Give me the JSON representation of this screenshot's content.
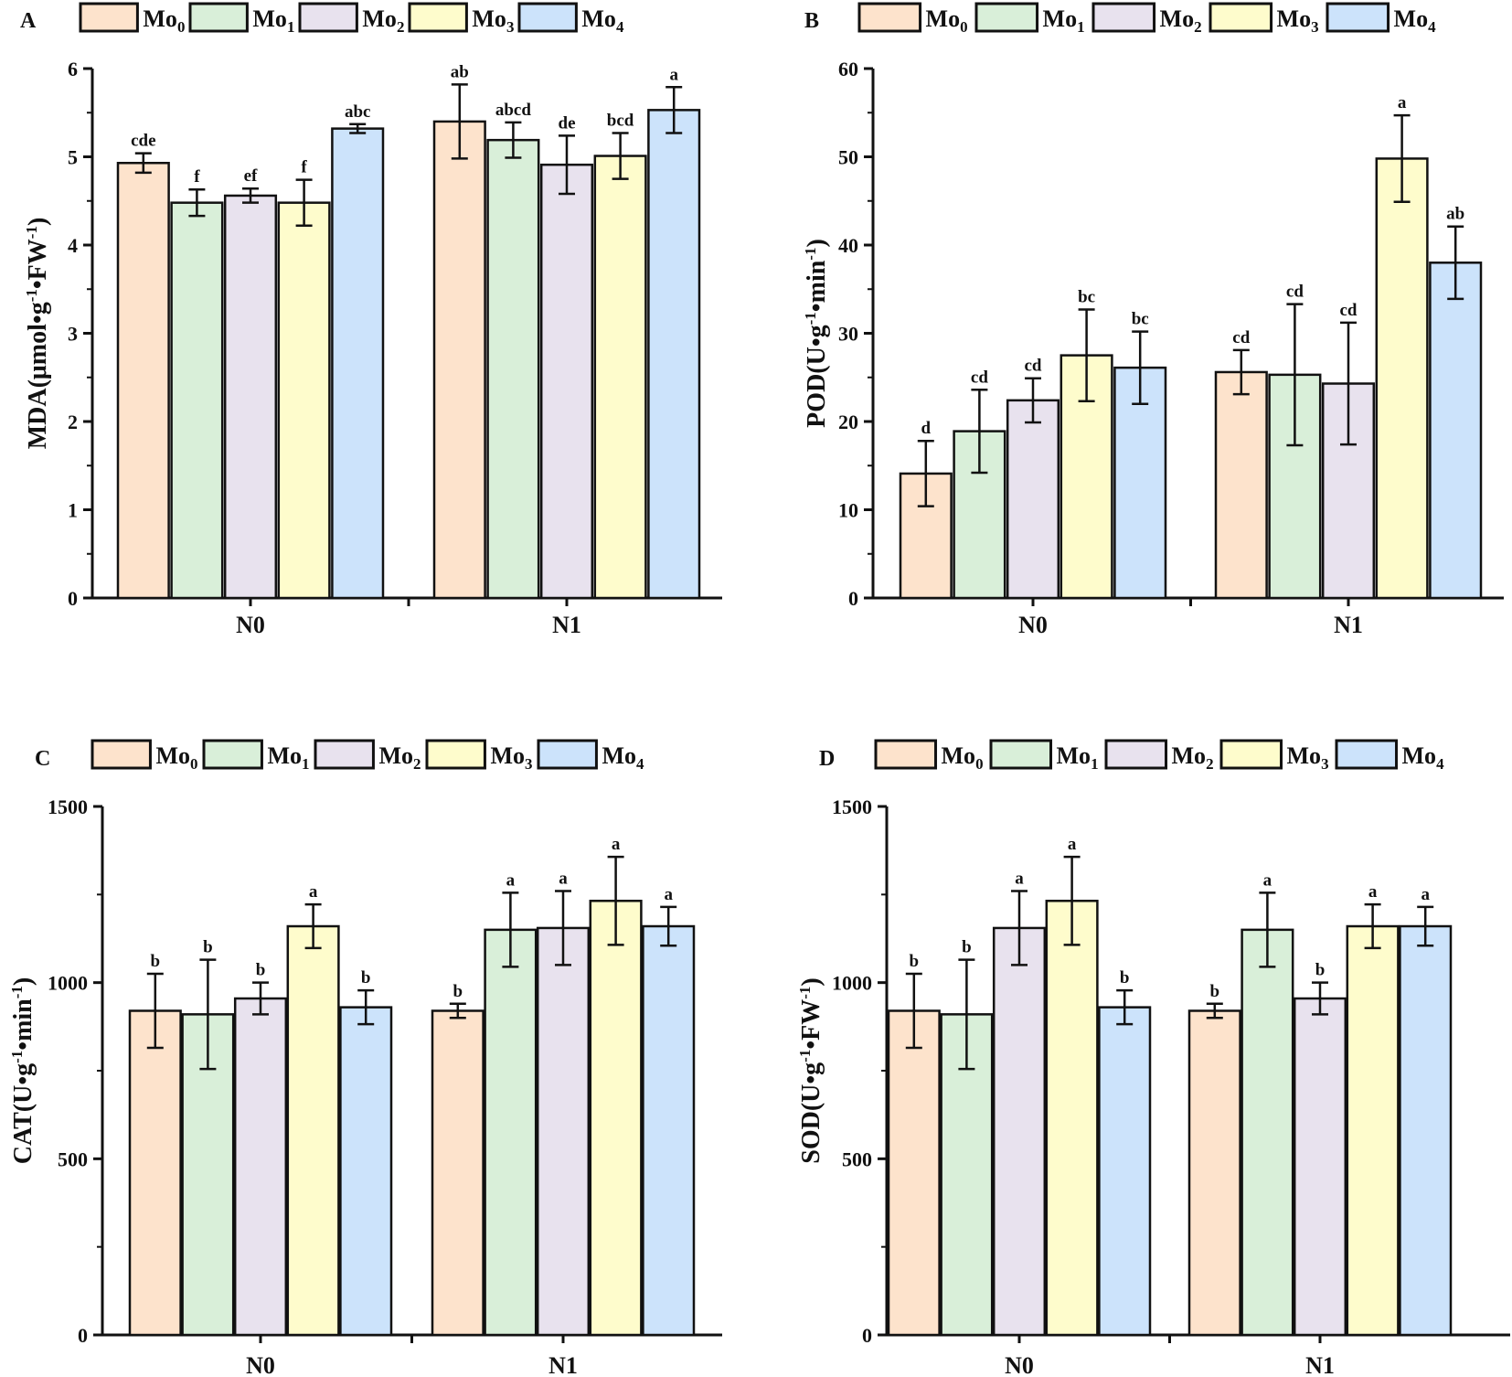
{
  "figure": {
    "legend": [
      {
        "base": "Mo",
        "sub": "0",
        "color": "#fde3cc"
      },
      {
        "base": "Mo",
        "sub": "1",
        "color": "#d9efd9"
      },
      {
        "base": "Mo",
        "sub": "2",
        "color": "#e8e2ee"
      },
      {
        "base": "Mo",
        "sub": "3",
        "color": "#fefccc"
      },
      {
        "base": "Mo",
        "sub": "4",
        "color": "#cce3fb"
      }
    ]
  },
  "chart_data": [
    {
      "panel": "A",
      "type": "bar",
      "categories": [
        "N0",
        "N1"
      ],
      "ylabel": {
        "pre": "MDA(μmol•g",
        "sup1": "-1",
        "mid": "•FW",
        "sup2": "-1",
        "post": ")"
      },
      "ylim": [
        0,
        6
      ],
      "yticks": [
        0,
        1,
        2,
        3,
        4,
        5,
        6
      ],
      "series": [
        {
          "name": "Mo0",
          "values": [
            4.93,
            5.4
          ],
          "errors": [
            0.11,
            0.42
          ],
          "sig": [
            "cde",
            "ab"
          ]
        },
        {
          "name": "Mo1",
          "values": [
            4.48,
            5.19
          ],
          "errors": [
            0.15,
            0.2
          ],
          "sig": [
            "f",
            "abcd"
          ]
        },
        {
          "name": "Mo2",
          "values": [
            4.56,
            4.91
          ],
          "errors": [
            0.08,
            0.33
          ],
          "sig": [
            "ef",
            "de"
          ]
        },
        {
          "name": "Mo3",
          "values": [
            4.48,
            5.01
          ],
          "errors": [
            0.26,
            0.26
          ],
          "sig": [
            "f",
            "bcd"
          ]
        },
        {
          "name": "Mo4",
          "values": [
            5.32,
            5.53
          ],
          "errors": [
            0.05,
            0.26
          ],
          "sig": [
            "abc",
            "a"
          ]
        }
      ]
    },
    {
      "panel": "B",
      "type": "bar",
      "categories": [
        "N0",
        "N1"
      ],
      "ylabel": {
        "pre": "POD(U•g",
        "sup1": "-1",
        "mid": "•min",
        "sup2": "-1",
        "post": ")"
      },
      "ylim": [
        0,
        60
      ],
      "yticks": [
        0,
        10,
        20,
        30,
        40,
        50,
        60
      ],
      "series": [
        {
          "name": "Mo0",
          "values": [
            14.1,
            25.6
          ],
          "errors": [
            3.7,
            2.5
          ],
          "sig": [
            "d",
            "cd"
          ]
        },
        {
          "name": "Mo1",
          "values": [
            18.9,
            25.3
          ],
          "errors": [
            4.7,
            8.0
          ],
          "sig": [
            "cd",
            "cd"
          ]
        },
        {
          "name": "Mo2",
          "values": [
            22.4,
            24.3
          ],
          "errors": [
            2.5,
            6.9
          ],
          "sig": [
            "cd",
            "cd"
          ]
        },
        {
          "name": "Mo3",
          "values": [
            27.5,
            49.8
          ],
          "errors": [
            5.2,
            4.9
          ],
          "sig": [
            "bc",
            "a"
          ]
        },
        {
          "name": "Mo4",
          "values": [
            26.1,
            38.0
          ],
          "errors": [
            4.1,
            4.1
          ],
          "sig": [
            "bc",
            "ab"
          ]
        }
      ]
    },
    {
      "panel": "C",
      "type": "bar",
      "categories": [
        "N0",
        "N1"
      ],
      "ylabel": {
        "pre": "CAT(U•g",
        "sup1": "-1",
        "mid": "•min",
        "sup2": "-1",
        "post": ")"
      },
      "ylim": [
        0,
        1500
      ],
      "yticks": [
        0,
        500,
        1000,
        1500
      ],
      "series": [
        {
          "name": "Mo0",
          "values": [
            920,
            920
          ],
          "errors": [
            105,
            20
          ],
          "sig": [
            "b",
            "b"
          ]
        },
        {
          "name": "Mo1",
          "values": [
            910,
            1150
          ],
          "errors": [
            155,
            105
          ],
          "sig": [
            "b",
            "a"
          ]
        },
        {
          "name": "Mo2",
          "values": [
            955,
            1155
          ],
          "errors": [
            45,
            105
          ],
          "sig": [
            "b",
            "a"
          ]
        },
        {
          "name": "Mo3",
          "values": [
            1160,
            1232
          ],
          "errors": [
            62,
            125
          ],
          "sig": [
            "a",
            "a"
          ]
        },
        {
          "name": "Mo4",
          "values": [
            930,
            1160
          ],
          "errors": [
            48,
            55
          ],
          "sig": [
            "b",
            "a"
          ]
        }
      ]
    },
    {
      "panel": "D",
      "type": "bar",
      "categories": [
        "N0",
        "N1"
      ],
      "ylabel": {
        "pre": "SOD(U•g",
        "sup1": "-1",
        "mid": "•FW",
        "sup2": "-1",
        "post": ")"
      },
      "ylim": [
        0,
        1500
      ],
      "yticks": [
        0,
        500,
        1000,
        1500
      ],
      "series": [
        {
          "name": "Mo0",
          "values": [
            920,
            920
          ],
          "errors": [
            105,
            20
          ],
          "sig": [
            "b",
            "b"
          ]
        },
        {
          "name": "Mo1",
          "values": [
            910,
            1150
          ],
          "errors": [
            155,
            105
          ],
          "sig": [
            "b",
            "a"
          ]
        },
        {
          "name": "Mo2",
          "values": [
            1155,
            955
          ],
          "errors": [
            105,
            45
          ],
          "sig": [
            "a",
            "b"
          ]
        },
        {
          "name": "Mo3",
          "values": [
            1232,
            1160
          ],
          "errors": [
            125,
            62
          ],
          "sig": [
            "a",
            "a"
          ]
        },
        {
          "name": "Mo4",
          "values": [
            930,
            1160
          ],
          "errors": [
            48,
            55
          ],
          "sig": [
            "b",
            "a"
          ]
        }
      ]
    }
  ]
}
